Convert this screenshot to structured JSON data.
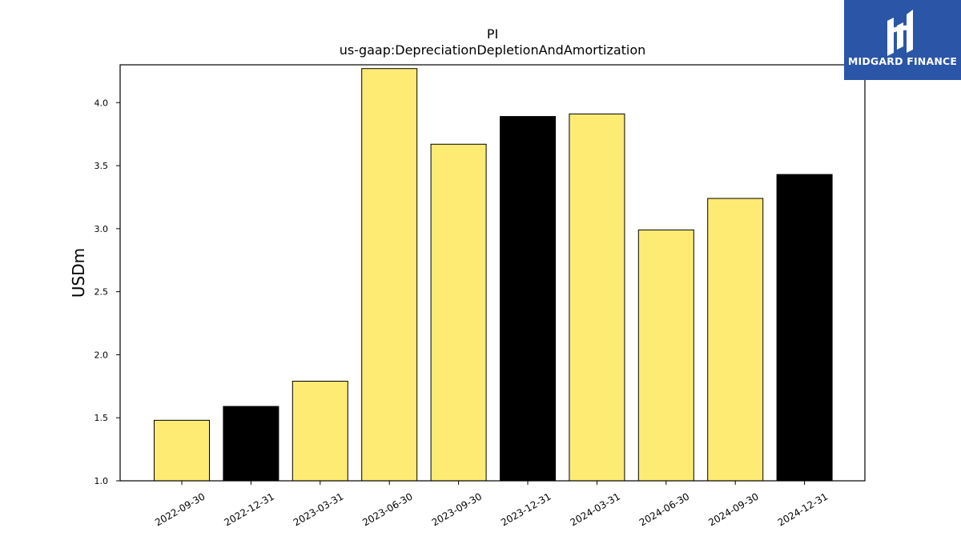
{
  "chart_data": {
    "type": "bar",
    "title": "PI",
    "subtitle": "us-gaap:DepreciationDepletionAndAmortization",
    "xlabel": "",
    "ylabel": "USDm",
    "ylim": [
      1.0,
      4.3
    ],
    "yticks": [
      "1.0",
      "1.5",
      "2.0",
      "2.5",
      "3.0",
      "3.5",
      "4.0"
    ],
    "categories": [
      "2022-09-30",
      "2022-12-31",
      "2023-03-31",
      "2023-06-30",
      "2023-09-30",
      "2023-12-31",
      "2024-03-31",
      "2024-06-30",
      "2024-09-30",
      "2024-12-31"
    ],
    "values": [
      1.48,
      1.59,
      1.79,
      4.27,
      3.67,
      3.89,
      3.91,
      2.99,
      3.24,
      3.43
    ],
    "bar_colors": [
      "#fdeb73",
      "#000000",
      "#fdeb73",
      "#fdeb73",
      "#fdeb73",
      "#000000",
      "#fdeb73",
      "#fdeb73",
      "#fdeb73",
      "#000000"
    ],
    "grid": false,
    "legend": "none"
  },
  "logo": {
    "text": "MIDGARD FINANCE",
    "background": "#2b55a6"
  }
}
